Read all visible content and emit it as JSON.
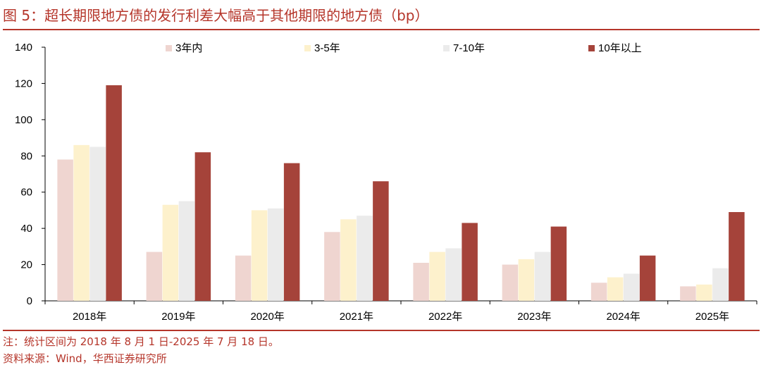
{
  "title": "图 5：超长期限地方债的发行利差大幅高于其他期限的地方债（bp）",
  "notes": {
    "note": "注：统计区间为 2018 年 8 月 1 日-2025 年 7 月 18 日。",
    "source": "资料来源：Wind，华西证券研究所"
  },
  "chart_data": {
    "type": "bar",
    "categories": [
      "2018年",
      "2019年",
      "2020年",
      "2021年",
      "2022年",
      "2023年",
      "2024年",
      "2025年"
    ],
    "series": [
      {
        "name": "3年内",
        "color": "#efd5d0",
        "values": [
          78,
          27,
          25,
          38,
          21,
          20,
          10,
          8
        ]
      },
      {
        "name": "3-5年",
        "color": "#fdf1cc",
        "values": [
          86,
          53,
          50,
          45,
          27,
          23,
          13,
          9
        ]
      },
      {
        "name": "7-10年",
        "color": "#ebebeb",
        "values": [
          85,
          55,
          51,
          47,
          29,
          27,
          15,
          18
        ]
      },
      {
        "name": "10年以上",
        "color": "#a5433a",
        "values": [
          119,
          82,
          76,
          66,
          43,
          41,
          25,
          49
        ]
      }
    ],
    "ylim": [
      0,
      140
    ],
    "yticks": [
      0,
      20,
      40,
      60,
      80,
      100,
      120,
      140
    ],
    "legend": "top",
    "grid": false
  }
}
